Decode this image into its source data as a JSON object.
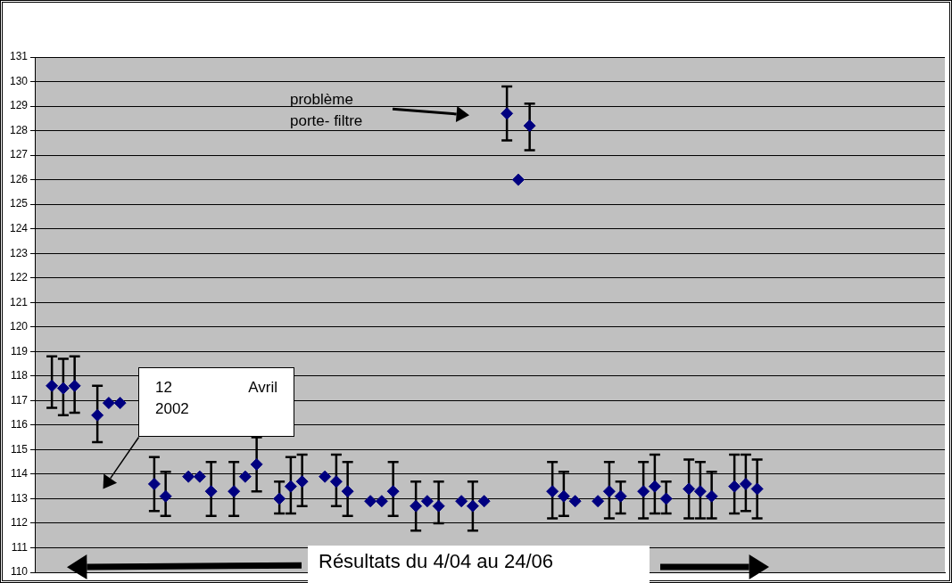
{
  "chart_data": {
    "type": "scatter",
    "color": "#000080",
    "marker": "diamond",
    "grid": "y",
    "tick_labels": "y",
    "ylim": [
      110,
      131
    ],
    "yticks": [
      110,
      111,
      112,
      113,
      114,
      115,
      116,
      117,
      118,
      119,
      120,
      121,
      122,
      123,
      124,
      125,
      126,
      127,
      128,
      129,
      130,
      131
    ],
    "categories": [
      null,
      null,
      null,
      null,
      null,
      null,
      null,
      null,
      null,
      null,
      null,
      null,
      null,
      null,
      null,
      null,
      null,
      null,
      null,
      null,
      null,
      null,
      null,
      null,
      null,
      null,
      null,
      null,
      null,
      null,
      null,
      null,
      null,
      null,
      null,
      null,
      null,
      null,
      null,
      null,
      null,
      null,
      null,
      null,
      null,
      null,
      null,
      null,
      null,
      null,
      null,
      null,
      null,
      null,
      null,
      null,
      null,
      null,
      null,
      null,
      null,
      null,
      null,
      null,
      null,
      null,
      null,
      null,
      null,
      null,
      null,
      null,
      null,
      null,
      null,
      null,
      null,
      null,
      null,
      null
    ],
    "values": [
      null,
      117.6,
      117.5,
      117.6,
      null,
      116.4,
      116.9,
      116.9,
      null,
      null,
      113.6,
      113.1,
      null,
      113.9,
      113.9,
      113.3,
      null,
      113.3,
      113.9,
      114.4,
      null,
      113.0,
      113.5,
      113.7,
      null,
      113.9,
      113.7,
      113.3,
      null,
      112.9,
      112.9,
      113.3,
      null,
      112.7,
      112.9,
      112.7,
      null,
      112.9,
      112.7,
      112.9,
      null,
      128.7,
      126.0,
      128.2,
      null,
      113.3,
      113.1,
      112.9,
      null,
      112.9,
      113.3,
      113.1,
      null,
      113.3,
      113.5,
      113.0,
      null,
      113.4,
      113.3,
      113.1,
      null,
      113.5,
      113.6,
      113.4,
      null,
      null,
      null,
      null,
      null,
      null,
      null,
      null,
      null,
      null,
      null,
      null,
      null,
      null,
      null,
      null
    ],
    "errors": [
      null,
      [
        116.7,
        118.8
      ],
      [
        116.4,
        118.7
      ],
      [
        116.5,
        118.8
      ],
      null,
      [
        115.3,
        117.6
      ],
      null,
      null,
      null,
      null,
      [
        112.5,
        114.7
      ],
      [
        112.3,
        114.1
      ],
      null,
      null,
      null,
      [
        112.3,
        114.5
      ],
      null,
      [
        112.3,
        114.5
      ],
      null,
      [
        113.3,
        115.5
      ],
      null,
      [
        112.4,
        113.7
      ],
      [
        112.4,
        114.7
      ],
      [
        112.7,
        114.8
      ],
      null,
      null,
      [
        112.7,
        114.8
      ],
      [
        112.3,
        114.5
      ],
      null,
      null,
      null,
      [
        112.3,
        114.5
      ],
      null,
      [
        111.7,
        113.7
      ],
      null,
      [
        112.0,
        113.7
      ],
      null,
      null,
      [
        111.7,
        113.7
      ],
      null,
      null,
      [
        127.6,
        129.8
      ],
      null,
      [
        127.2,
        129.1
      ],
      null,
      [
        112.2,
        114.5
      ],
      [
        112.3,
        114.1
      ],
      null,
      null,
      null,
      [
        112.2,
        114.5
      ],
      [
        112.4,
        113.7
      ],
      null,
      [
        112.2,
        114.5
      ],
      [
        112.4,
        114.8
      ],
      [
        112.4,
        113.7
      ],
      null,
      [
        112.2,
        114.6
      ],
      [
        112.2,
        114.5
      ],
      [
        112.2,
        114.1
      ],
      null,
      [
        112.4,
        114.8
      ],
      [
        112.5,
        114.8
      ],
      [
        112.2,
        114.6
      ],
      null,
      null,
      null,
      null,
      null,
      null,
      null,
      null,
      null,
      null,
      null,
      null,
      null,
      null,
      null,
      null
    ],
    "annotations": [
      "problème porte- filtre",
      "12 Avril 2002",
      "Résultats du 4/04 au 24/06"
    ]
  }
}
